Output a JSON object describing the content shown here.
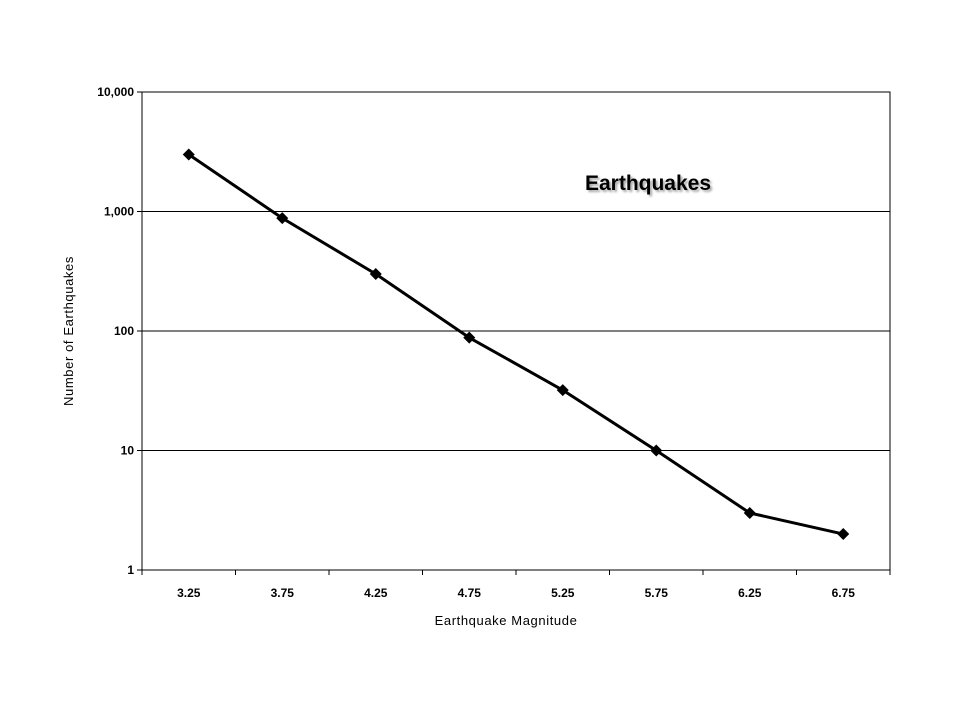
{
  "chart_data": {
    "type": "line",
    "title": "Earthquakes",
    "xlabel": "Earthquake Magnitude",
    "ylabel": "Number of Earthquakes",
    "y_scale": "log",
    "ylim": [
      1,
      10000
    ],
    "y_ticks": [
      {
        "value": 1,
        "label": "1"
      },
      {
        "value": 10,
        "label": "10"
      },
      {
        "value": 100,
        "label": "100"
      },
      {
        "value": 1000,
        "label": "1,000"
      },
      {
        "value": 10000,
        "label": "10,000"
      }
    ],
    "categories": [
      "3.25",
      "3.75",
      "4.25",
      "4.75",
      "5.25",
      "5.75",
      "6.25",
      "6.75"
    ],
    "series": [
      {
        "values": [
          3000,
          880,
          300,
          88,
          32,
          10,
          3,
          2
        ],
        "color": "#000000",
        "marker": "diamond"
      }
    ],
    "grid": "horizontal major gridlines",
    "legend": "none"
  }
}
